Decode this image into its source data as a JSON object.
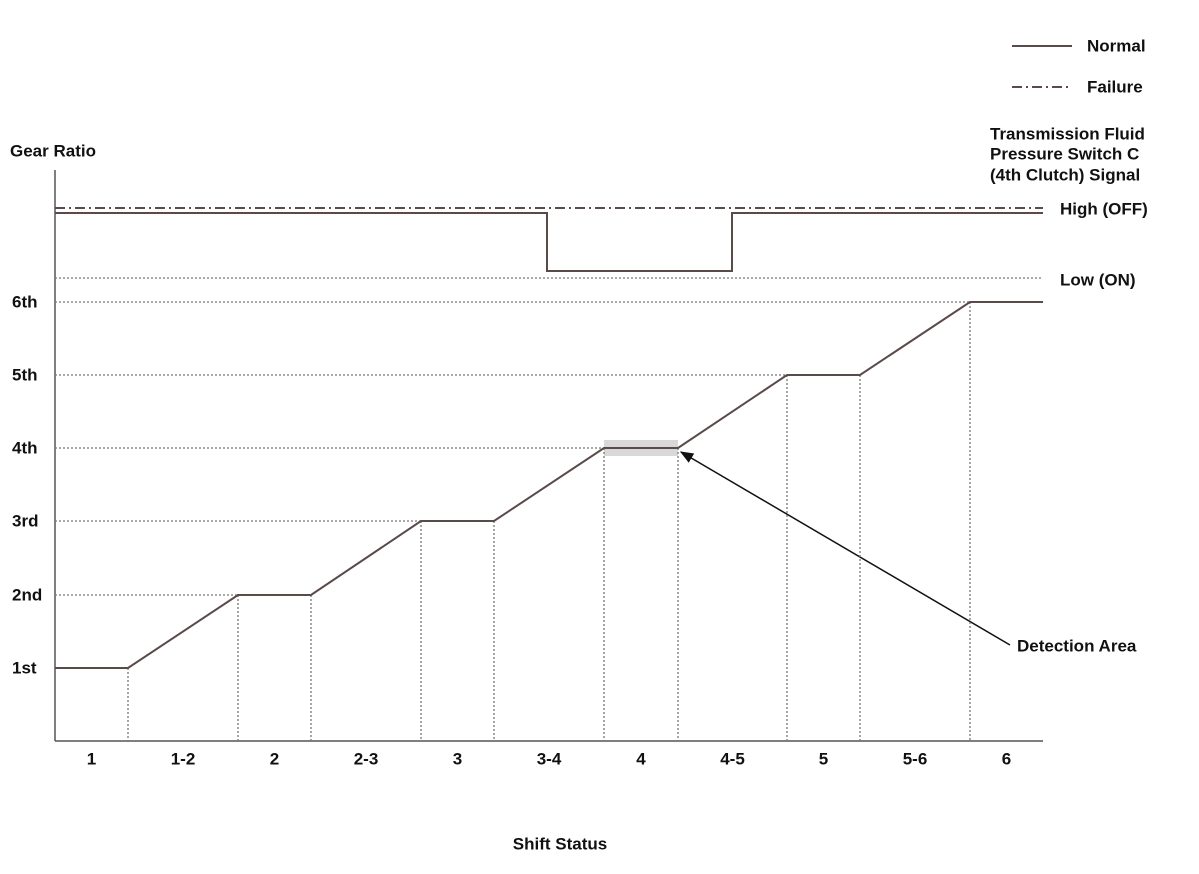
{
  "legend": [
    "Normal",
    "Failure"
  ],
  "y_axis_label": "Gear Ratio",
  "gears": [
    "1st",
    "2nd",
    "3rd",
    "4th",
    "5th",
    "6th"
  ],
  "x_axis_label": "Shift Status",
  "shift_states": [
    "1",
    "1-2",
    "2",
    "2-3",
    "3",
    "3-4",
    "4",
    "4-5",
    "5",
    "5-6",
    "6"
  ],
  "signal_title": [
    "Transmission Fluid",
    "Pressure Switch C",
    "(4th Clutch) Signal"
  ],
  "signal_levels": [
    "High (OFF)",
    "Low (ON)"
  ],
  "annotation": "Detection Area"
}
